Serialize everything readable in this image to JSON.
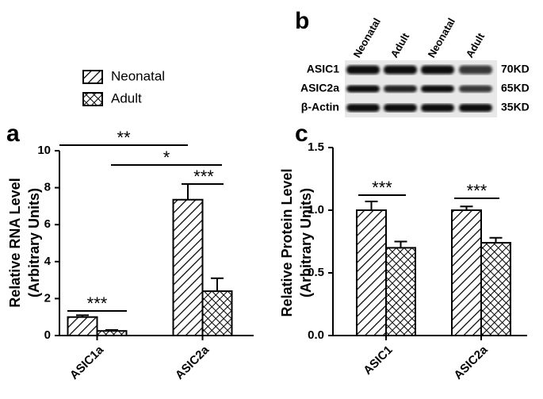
{
  "chart_data": [
    {
      "type": "bar",
      "panel": "a",
      "ylabel": [
        "Relative RNA Level",
        "(Arbitrary Units)"
      ],
      "categories": [
        "ASIC1a",
        "ASIC2a"
      ],
      "series": [
        {
          "name": "Neonatal",
          "color": "#000000",
          "pattern": "hatch",
          "values": [
            1.0,
            7.35
          ],
          "errors": [
            0.1,
            0.85
          ]
        },
        {
          "name": "Adult",
          "color": "#000000",
          "pattern": "crosshatch",
          "values": [
            0.25,
            2.4
          ],
          "errors": [
            0.05,
            0.7
          ]
        }
      ],
      "ylim": [
        0,
        10
      ],
      "yticks": [
        0,
        2,
        4,
        6,
        8,
        10
      ],
      "annotations": [
        {
          "text": "**"
        },
        {
          "text": "*"
        },
        {
          "text": "***"
        },
        {
          "text": "***"
        }
      ]
    },
    {
      "type": "bar",
      "panel": "c",
      "ylabel": [
        "Relative Protein Level",
        "(Arbitrary Units)"
      ],
      "categories": [
        "ASIC1",
        "ASIC2a"
      ],
      "series": [
        {
          "color": "#000000",
          "pattern": "hatch",
          "values": [
            1.0,
            1.0
          ],
          "errors": [
            0.07,
            0.03
          ]
        },
        {
          "color": "#000000",
          "pattern": "crosshatch",
          "values": [
            0.7,
            0.74
          ],
          "errors": [
            0.05,
            0.04
          ]
        }
      ],
      "ylim": [
        0,
        1.5
      ],
      "yticks": [
        {
          "value": 0,
          "label": "0.0"
        },
        0.5,
        {
          "value": 1,
          "label": "1.0"
        },
        1.5
      ],
      "annotations": [
        {
          "text": "***"
        },
        {
          "text": "***"
        }
      ]
    }
  ],
  "blot": {
    "panel": "b",
    "columns": [
      "Neonatal",
      "Adult",
      "Neonatal",
      "Adult"
    ],
    "rows": [
      {
        "name": "ASIC1",
        "size": "70KD"
      },
      {
        "name": "ASIC2a",
        "size": "65KD"
      },
      {
        "name": "β-Actin",
        "size": "35KD"
      }
    ]
  }
}
